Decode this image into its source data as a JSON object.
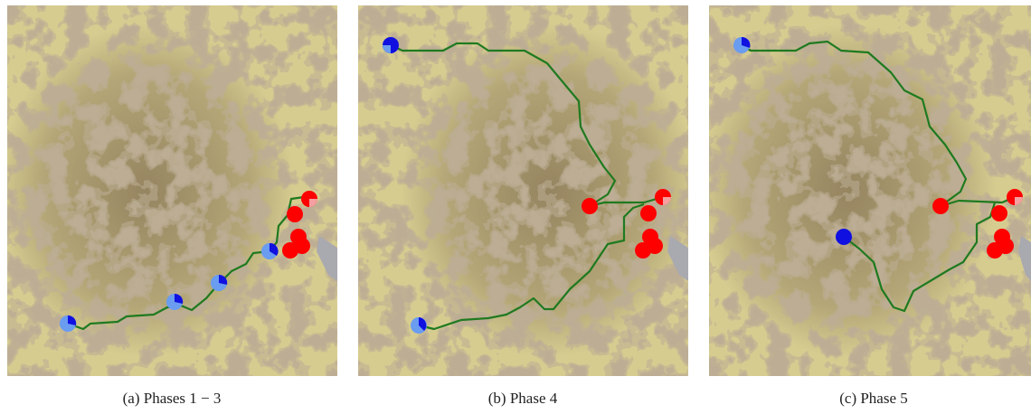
{
  "panels": [
    {
      "caption": "(a) Phases 1 − 3"
    },
    {
      "caption": "(b) Phase 4"
    },
    {
      "caption": "(c) Phase 5"
    }
  ]
}
